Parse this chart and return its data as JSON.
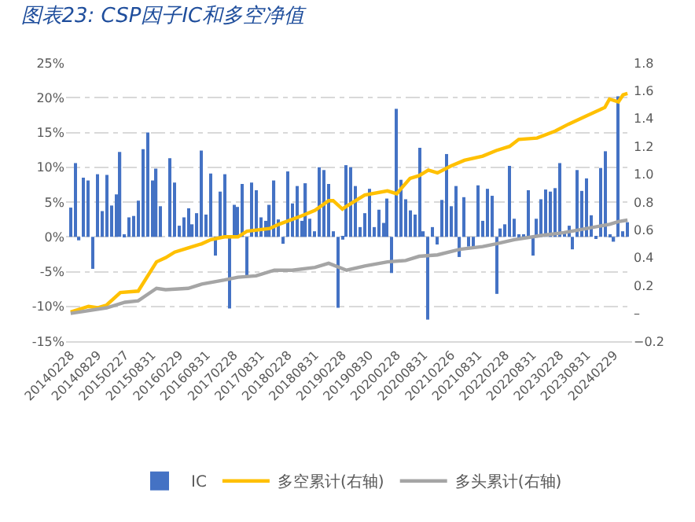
{
  "chart_data": {
    "type": "bar",
    "title": "图表23: CSP因子IC和多空净值",
    "x": [
      "2014-02",
      "2014-03",
      "2014-04",
      "2014-05",
      "2014-06",
      "2014-07",
      "2014-08",
      "2014-09",
      "2014-10",
      "2014-11",
      "2014-12",
      "2015-01",
      "2015-02",
      "2015-03",
      "2015-04",
      "2015-05",
      "2015-06",
      "2015-07",
      "2015-08",
      "2015-09",
      "2015-10",
      "2015-11",
      "2015-12",
      "2016-01",
      "2016-02",
      "2016-03",
      "2016-04",
      "2016-05",
      "2016-06",
      "2016-07",
      "2016-08",
      "2016-09",
      "2016-10",
      "2016-11",
      "2016-12",
      "2017-01",
      "2017-02",
      "2017-03",
      "2017-04",
      "2017-05",
      "2017-06",
      "2017-07",
      "2017-08",
      "2017-09",
      "2017-10",
      "2017-11",
      "2017-12",
      "2018-01",
      "2018-02",
      "2018-03",
      "2018-04",
      "2018-05",
      "2018-06",
      "2018-07",
      "2018-08",
      "2018-09",
      "2018-10",
      "2018-11",
      "2018-12",
      "2019-01",
      "2019-02",
      "2019-03",
      "2019-04",
      "2019-05",
      "2019-06",
      "2019-07",
      "2019-08",
      "2019-09",
      "2019-10",
      "2019-11",
      "2019-12",
      "2020-01",
      "2020-02",
      "2020-03",
      "2020-04",
      "2020-05",
      "2020-06",
      "2020-07",
      "2020-08",
      "2020-09",
      "2020-10",
      "2020-11",
      "2020-12",
      "2021-01",
      "2021-02",
      "2021-03",
      "2021-04",
      "2021-05",
      "2021-06",
      "2021-07",
      "2021-08",
      "2021-09",
      "2021-10",
      "2021-11",
      "2021-12",
      "2022-01",
      "2022-02",
      "2022-03",
      "2022-04",
      "2022-05",
      "2022-06",
      "2022-07",
      "2022-08",
      "2022-09",
      "2022-10",
      "2022-11",
      "2022-12",
      "2023-01",
      "2023-02",
      "2023-03",
      "2023-04",
      "2023-05",
      "2023-06",
      "2023-07",
      "2023-08",
      "2023-09",
      "2023-10",
      "2023-11",
      "2023-12",
      "2024-01",
      "2024-02",
      "2024-03",
      "2024-04",
      "2024-05"
    ],
    "series": [
      {
        "name": "IC",
        "color": "#4472c4",
        "values": [
          4.2,
          10.6,
          -0.5,
          8.5,
          8.1,
          -4.6,
          9.0,
          3.7,
          8.9,
          4.5,
          6.1,
          12.2,
          0.2,
          2.8,
          3.0,
          5.2,
          12.6,
          15.0,
          8.1,
          9.8,
          4.4,
          0,
          11.3,
          7.8,
          1.6,
          2.8,
          4.1,
          1.8,
          3.4,
          12.4,
          3.2,
          9.1,
          -2.7,
          6.5,
          9.0,
          -10.3,
          4.6,
          4.3,
          7.6,
          -5.6,
          7.8,
          6.7,
          2.8,
          2.3,
          4.6,
          8.1,
          2.5,
          -1.0,
          9.4,
          4.8,
          7.3,
          2.3,
          7.7,
          2.6,
          0.8,
          10.0,
          9.6,
          7.6,
          0.8,
          -10.2,
          -0.4,
          10.3,
          10.0,
          7.3,
          1.4,
          3.4,
          6.9,
          1.4,
          3.9,
          2.0,
          5.5,
          -5.2,
          18.4,
          8.2,
          5.4,
          3.8,
          3.2,
          12.8,
          0.8,
          -11.9,
          1.4,
          -1.1,
          5.3,
          11.9,
          4.4,
          7.3,
          -2.9,
          5.7,
          -1.4,
          -1.7,
          7.4,
          2.3,
          6.9,
          5.9,
          -8.2,
          1.2,
          1.8,
          10.2,
          2.6,
          0.3,
          0.3,
          6.7,
          -2.7,
          2.6,
          5.4,
          6.8,
          6.5,
          7.0,
          10.6,
          0.5,
          1.6,
          -1.8,
          9.6,
          6.6,
          8.4,
          3.1,
          -0.2,
          9.9,
          12.3,
          0.2,
          -0.7,
          20.2,
          0.8,
          2.1
        ]
      },
      {
        "name": "多空累计(右轴)",
        "type": "line",
        "axis": "y2",
        "color": "#ffc000",
        "x": [
          "2014-02",
          "2014-06",
          "2014-08",
          "2014-10",
          "2015-01",
          "2015-05",
          "2015-09",
          "2015-11",
          "2016-01",
          "2016-04",
          "2016-07",
          "2016-09",
          "2016-12",
          "2017-03",
          "2017-05",
          "2017-10",
          "2017-12",
          "2018-05",
          "2018-08",
          "2018-11",
          "2018-12",
          "2019-02",
          "2019-03",
          "2019-07",
          "2019-12",
          "2020-02",
          "2020-05",
          "2020-07",
          "2020-09",
          "2020-11",
          "2021-02",
          "2021-05",
          "2021-09",
          "2021-12",
          "2022-03",
          "2022-05",
          "2022-09",
          "2023-01",
          "2023-04",
          "2023-08",
          "2023-12",
          "2024-01",
          "2024-03",
          "2024-04",
          "2024-05"
        ],
        "values": [
          0.01,
          0.05,
          0.04,
          0.06,
          0.15,
          0.16,
          0.37,
          0.4,
          0.44,
          0.47,
          0.5,
          0.53,
          0.55,
          0.55,
          0.59,
          0.61,
          0.64,
          0.7,
          0.74,
          0.81,
          0.81,
          0.75,
          0.77,
          0.85,
          0.88,
          0.86,
          0.97,
          0.99,
          1.03,
          1.01,
          1.06,
          1.1,
          1.13,
          1.17,
          1.2,
          1.25,
          1.26,
          1.31,
          1.36,
          1.42,
          1.48,
          1.54,
          1.52,
          1.57,
          1.58
        ]
      },
      {
        "name": "多头累计(右轴)",
        "type": "line",
        "axis": "y2",
        "color": "#a5a5a5",
        "x": [
          "2014-02",
          "2014-10",
          "2015-02",
          "2015-05",
          "2015-09",
          "2015-11",
          "2016-04",
          "2016-07",
          "2016-12",
          "2017-03",
          "2017-07",
          "2017-11",
          "2018-03",
          "2018-08",
          "2018-11",
          "2019-03",
          "2019-07",
          "2019-12",
          "2020-04",
          "2020-07",
          "2020-11",
          "2021-04",
          "2021-09",
          "2021-12",
          "2022-04",
          "2022-10",
          "2023-03",
          "2023-08",
          "2024-01",
          "2024-03",
          "2024-05"
        ],
        "values": [
          0.0,
          0.04,
          0.08,
          0.09,
          0.18,
          0.17,
          0.18,
          0.21,
          0.24,
          0.26,
          0.27,
          0.31,
          0.31,
          0.33,
          0.36,
          0.31,
          0.34,
          0.37,
          0.38,
          0.41,
          0.42,
          0.46,
          0.48,
          0.5,
          0.53,
          0.56,
          0.58,
          0.61,
          0.64,
          0.66,
          0.67
        ]
      }
    ],
    "xlim": [
      "2014-01",
      "2024-06"
    ],
    "xticks": [
      {
        "value": "2014-02",
        "label": "20140228"
      },
      {
        "value": "2014-08",
        "label": "20140829"
      },
      {
        "value": "2015-02",
        "label": "20150227"
      },
      {
        "value": "2015-08",
        "label": "20150831"
      },
      {
        "value": "2016-02",
        "label": "20160229"
      },
      {
        "value": "2016-08",
        "label": "20160831"
      },
      {
        "value": "2017-02",
        "label": "20170228"
      },
      {
        "value": "2017-08",
        "label": "20170831"
      },
      {
        "value": "2018-02",
        "label": "20180228"
      },
      {
        "value": "2018-08",
        "label": "20180831"
      },
      {
        "value": "2019-02",
        "label": "20190228"
      },
      {
        "value": "2019-08",
        "label": "20190830"
      },
      {
        "value": "2020-02",
        "label": "20200228"
      },
      {
        "value": "2020-08",
        "label": "20200831"
      },
      {
        "value": "2021-02",
        "label": "20210226"
      },
      {
        "value": "2021-08",
        "label": "20210831"
      },
      {
        "value": "2022-02",
        "label": "20220228"
      },
      {
        "value": "2022-08",
        "label": "20220831"
      },
      {
        "value": "2023-02",
        "label": "20230228"
      },
      {
        "value": "2023-08",
        "label": "20230831"
      },
      {
        "value": "2024-02",
        "label": "20240229"
      }
    ],
    "ylim": [
      -15,
      25
    ],
    "yticks": [
      {
        "value": -15,
        "label": "-15%"
      },
      {
        "value": -10,
        "label": "-10%"
      },
      {
        "value": -5,
        "label": "-5%"
      },
      {
        "value": 0,
        "label": "0%"
      },
      {
        "value": 5,
        "label": "5%"
      },
      {
        "value": 10,
        "label": "10%"
      },
      {
        "value": 15,
        "label": "15%"
      },
      {
        "value": 20,
        "label": "20%"
      },
      {
        "value": 25,
        "label": "25%"
      }
    ],
    "y2lim": [
      -0.2,
      1.8
    ],
    "y2ticks": [
      {
        "value": -0.2,
        "label": "−0.2"
      },
      {
        "value": 0,
        "label": "–"
      },
      {
        "value": 0.2,
        "label": "0.2"
      },
      {
        "value": 0.4,
        "label": "0.4"
      },
      {
        "value": 0.6,
        "label": "0.6"
      },
      {
        "value": 0.8,
        "label": "0.8"
      },
      {
        "value": 1.0,
        "label": "1.0"
      },
      {
        "value": 1.2,
        "label": "1.2"
      },
      {
        "value": 1.4,
        "label": "1.4"
      },
      {
        "value": 1.6,
        "label": "1.6"
      },
      {
        "value": 1.8,
        "label": "1.8"
      }
    ],
    "grid": "y",
    "legend": "bottom",
    "marker": "none",
    "line_style": "solid"
  }
}
